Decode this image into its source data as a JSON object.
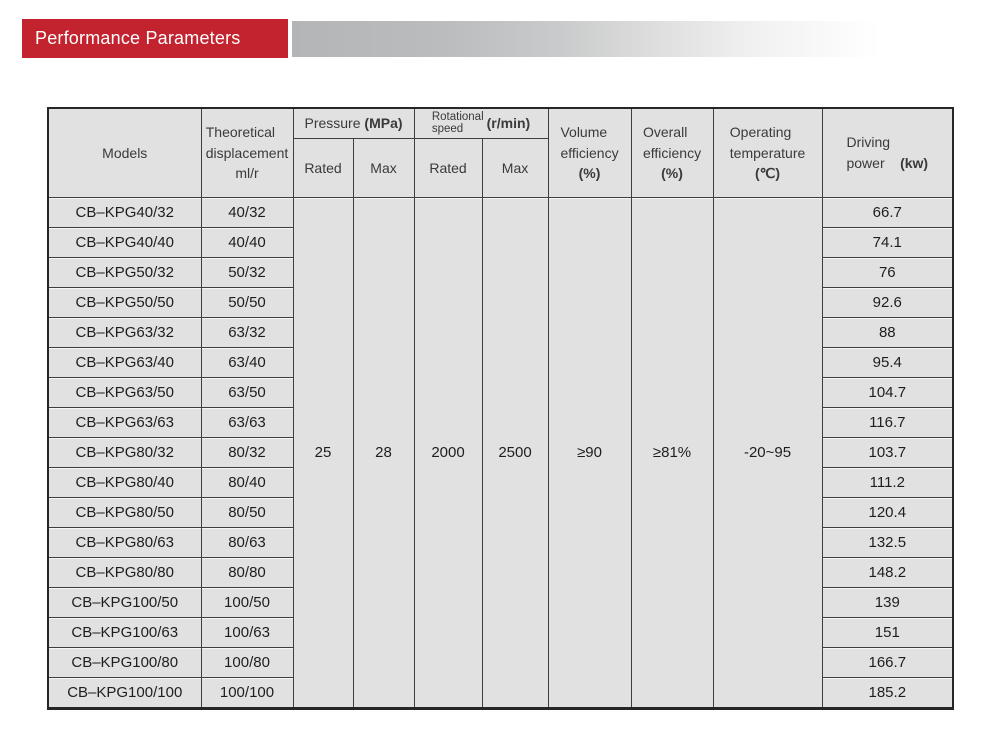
{
  "banner": {
    "title": "Performance Parameters",
    "accent_color": "#c3232f",
    "text_color": "#ffffff"
  },
  "table": {
    "header": {
      "models": "Models",
      "displacement_line1": "Theoretical",
      "displacement_line2": "displacement",
      "displacement_unit": "ml/r",
      "pressure_label": "Pressure",
      "pressure_unit": "(MPa)",
      "rotational_line1": "Rotational",
      "rotational_line2": "speed",
      "rotational_unit": "(r/min)",
      "pressure_rated_label": "Rated",
      "pressure_max_label": "Max",
      "speed_rated_label": "Rated",
      "speed_max_label": "Max",
      "volume_line1": "Volume",
      "volume_line2": "efficiency",
      "volume_unit": "(%)",
      "overall_line1": "Overall",
      "overall_line2": "efficiency",
      "overall_unit": "(%)",
      "temp_line1": "Operating",
      "temp_line2": "temperature",
      "temp_unit": "(℃)",
      "driving_line1": "Driving",
      "driving_line2": "power",
      "driving_unit": "(kw)"
    },
    "shared": {
      "pressure_rated": "25",
      "pressure_max": "28",
      "speed_rated": "2000",
      "speed_max": "2500",
      "volume_efficiency": "≥90",
      "overall_efficiency": "≥81%",
      "operating_temperature": "-20~95"
    },
    "rows": [
      {
        "model": "CB–KPG40/32",
        "displacement": "40/32",
        "power": "66.7"
      },
      {
        "model": "CB–KPG40/40",
        "displacement": "40/40",
        "power": "74.1"
      },
      {
        "model": "CB–KPG50/32",
        "displacement": "50/32",
        "power": "76"
      },
      {
        "model": "CB–KPG50/50",
        "displacement": "50/50",
        "power": "92.6"
      },
      {
        "model": "CB–KPG63/32",
        "displacement": "63/32",
        "power": "88"
      },
      {
        "model": "CB–KPG63/40",
        "displacement": "63/40",
        "power": "95.4"
      },
      {
        "model": "CB–KPG63/50",
        "displacement": "63/50",
        "power": "104.7"
      },
      {
        "model": "CB–KPG63/63",
        "displacement": "63/63",
        "power": "116.7"
      },
      {
        "model": "CB–KPG80/32",
        "displacement": "80/32",
        "power": "103.7"
      },
      {
        "model": "CB–KPG80/40",
        "displacement": "80/40",
        "power": "111.2"
      },
      {
        "model": "CB–KPG80/50",
        "displacement": "80/50",
        "power": "120.4"
      },
      {
        "model": "CB–KPG80/63",
        "displacement": "80/63",
        "power": "132.5"
      },
      {
        "model": "CB–KPG80/80",
        "displacement": "80/80",
        "power": "148.2"
      },
      {
        "model": "CB–KPG100/50",
        "displacement": "100/50",
        "power": "139"
      },
      {
        "model": "CB–KPG100/63",
        "displacement": "100/63",
        "power": "151"
      },
      {
        "model": "CB–KPG100/80",
        "displacement": "100/80",
        "power": "166.7"
      },
      {
        "model": "CB–KPG100/100",
        "displacement": "100/100",
        "power": "185.2"
      }
    ]
  }
}
